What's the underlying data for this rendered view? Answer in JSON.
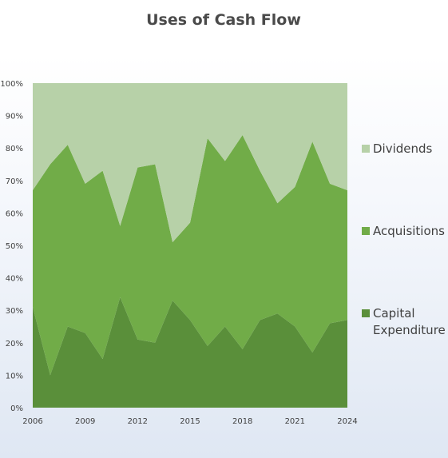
{
  "chart_data": {
    "type": "area",
    "stacked": "percent",
    "title": "Uses of Cash Flow",
    "xlabel": "",
    "ylabel": "",
    "x": [
      2006,
      2007,
      2008,
      2009,
      2010,
      2011,
      2012,
      2013,
      2014,
      2015,
      2016,
      2017,
      2018,
      2019,
      2020,
      2021,
      2022,
      2023,
      2024
    ],
    "x_ticks": [
      "2006",
      "2009",
      "2012",
      "2015",
      "2018",
      "2021",
      "2024"
    ],
    "y_ticks": [
      "0%",
      "10%",
      "20%",
      "30%",
      "40%",
      "50%",
      "60%",
      "70%",
      "80%",
      "90%",
      "100%"
    ],
    "ylim": [
      0,
      100
    ],
    "grid": false,
    "legend_position": "right",
    "series": [
      {
        "name": "Capital Expenditure",
        "color": "#5a8f3a",
        "values": [
          31,
          10,
          25,
          23,
          15,
          34,
          21,
          20,
          33,
          27,
          19,
          25,
          18,
          27,
          29,
          25,
          17,
          26,
          27
        ]
      },
      {
        "name": "Acquisitions",
        "color": "#71ac48",
        "values": [
          36,
          65,
          56,
          46,
          58,
          22,
          53,
          55,
          18,
          30,
          64,
          51,
          66,
          46,
          34,
          43,
          65,
          43,
          40
        ]
      },
      {
        "name": "Dividends",
        "color": "#b7d1a8",
        "values": [
          33,
          25,
          19,
          31,
          27,
          44,
          26,
          25,
          49,
          43,
          17,
          24,
          16,
          27,
          37,
          32,
          18,
          31,
          33
        ]
      }
    ],
    "legend_order": [
      "Dividends",
      "Acquisitions",
      "Capital Expenditure"
    ],
    "legend_lines": {
      "Dividends": [
        "Dividends"
      ],
      "Acquisitions": [
        "Acquisitions"
      ],
      "Capital Expenditure": [
        "Capital",
        "Expenditure"
      ]
    }
  }
}
